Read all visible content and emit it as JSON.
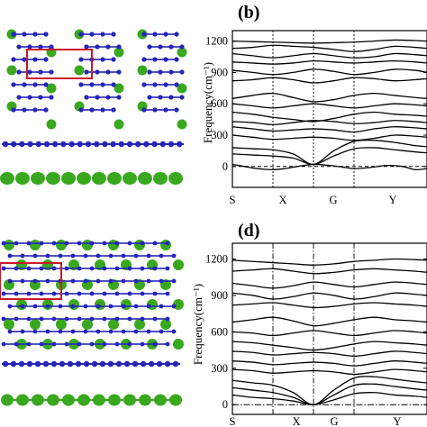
{
  "colors": {
    "boron": "#2525b8",
    "metal": "#39a81e",
    "cell": "#c81a2a",
    "frame": "#000000"
  },
  "panels": [
    {
      "letter": "(b)",
      "xlabels": [
        "S",
        "X",
        "G",
        "Y"
      ]
    },
    {
      "letter": "(d)",
      "xlabels": [
        "S",
        "X",
        "G",
        "Y"
      ]
    }
  ],
  "chart_data": [
    {
      "type": "line",
      "title": "(b)",
      "ylabel": "Frequency(cm⁻¹)",
      "xlabel": "",
      "x_ticks": [
        "S",
        "X",
        "G",
        "Y"
      ],
      "y_ticks": [
        0,
        300,
        600,
        900,
        1200
      ],
      "ylim": [
        -200,
        1300
      ],
      "xlim": [
        0,
        4.8
      ],
      "vertical_lines_at": [
        1,
        2,
        3
      ],
      "zero_line": "dashed",
      "series": [
        {
          "x": [
            0,
            0.5,
            1,
            1.5,
            2,
            2.5,
            3,
            3.5,
            4,
            4.5,
            4.8
          ],
          "values": [
            1200,
            1195,
            1190,
            1185,
            1180,
            1185,
            1190,
            1200,
            1210,
            1205,
            1200
          ]
        },
        {
          "x": [
            0,
            0.5,
            1,
            1.5,
            2,
            2.5,
            3,
            3.5,
            4,
            4.5,
            4.8
          ],
          "values": [
            1130,
            1140,
            1160,
            1150,
            1140,
            1120,
            1100,
            1120,
            1150,
            1140,
            1130
          ]
        },
        {
          "x": [
            0,
            0.5,
            1,
            1.5,
            2,
            2.5,
            3,
            3.5,
            4,
            4.5,
            4.8
          ],
          "values": [
            1080,
            1060,
            1040,
            1060,
            1080,
            1060,
            1040,
            1050,
            1080,
            1070,
            1060
          ]
        },
        {
          "x": [
            0,
            0.5,
            1,
            1.5,
            2,
            2.5,
            3,
            3.5,
            4,
            4.5,
            4.8
          ],
          "values": [
            1000,
            990,
            980,
            990,
            1010,
            1000,
            990,
            1000,
            1010,
            1000,
            990
          ]
        },
        {
          "x": [
            0,
            0.5,
            1,
            1.5,
            2,
            2.5,
            3,
            3.5,
            4,
            4.5,
            4.8
          ],
          "values": [
            920,
            900,
            880,
            900,
            930,
            910,
            880,
            900,
            930,
            920,
            900
          ]
        },
        {
          "x": [
            0,
            0.5,
            1,
            1.5,
            2,
            2.5,
            3,
            3.5,
            4,
            4.5,
            4.8
          ],
          "values": [
            820,
            830,
            850,
            830,
            800,
            820,
            850,
            840,
            820,
            830,
            840
          ]
        },
        {
          "x": [
            0,
            0.5,
            1,
            1.5,
            2,
            2.5,
            3,
            3.5,
            4,
            4.5,
            4.8
          ],
          "values": [
            650,
            680,
            700,
            660,
            620,
            640,
            680,
            700,
            680,
            660,
            650
          ]
        },
        {
          "x": [
            0,
            0.5,
            1,
            1.5,
            2,
            2.5,
            3,
            3.5,
            4,
            4.5,
            4.8
          ],
          "values": [
            600,
            580,
            560,
            580,
            600,
            580,
            560,
            580,
            600,
            590,
            580
          ]
        },
        {
          "x": [
            0,
            0.5,
            1,
            1.5,
            2,
            2.5,
            3,
            3.5,
            4,
            4.5,
            4.8
          ],
          "values": [
            520,
            500,
            470,
            450,
            430,
            460,
            500,
            520,
            500,
            490,
            480
          ]
        },
        {
          "x": [
            0,
            0.5,
            1,
            1.5,
            2,
            2.5,
            3,
            3.5,
            4,
            4.5,
            4.8
          ],
          "values": [
            430,
            420,
            400,
            420,
            440,
            430,
            410,
            420,
            440,
            430,
            420
          ]
        },
        {
          "x": [
            0,
            0.5,
            1,
            1.5,
            2,
            2.5,
            3,
            3.5,
            4,
            4.5,
            4.8
          ],
          "values": [
            380,
            360,
            340,
            350,
            360,
            350,
            330,
            360,
            380,
            370,
            360
          ]
        },
        {
          "x": [
            0,
            0.5,
            1,
            1.5,
            2,
            2.5,
            3,
            3.5,
            4,
            4.5,
            4.8
          ],
          "values": [
            300,
            280,
            260,
            270,
            280,
            270,
            250,
            270,
            300,
            290,
            280
          ]
        },
        {
          "x": [
            0,
            0.5,
            1,
            1.5,
            2,
            2.5,
            3,
            3.5,
            4,
            4.5,
            4.8
          ],
          "values": [
            180,
            170,
            160,
            120,
            20,
            150,
            240,
            250,
            230,
            200,
            190
          ]
        },
        {
          "x": [
            0,
            0.5,
            1,
            1.5,
            2,
            2.5,
            3,
            3.5,
            4,
            4.5,
            4.8
          ],
          "values": [
            120,
            110,
            100,
            80,
            20,
            100,
            170,
            180,
            160,
            140,
            130
          ]
        },
        {
          "x": [
            0,
            0.3,
            0.6,
            1,
            1.3,
            1.6,
            2,
            2.4,
            2.8,
            3,
            3.4,
            3.8,
            4.2,
            4.5,
            4.8
          ],
          "values": [
            20,
            0,
            -20,
            -30,
            -20,
            0,
            20,
            10,
            -10,
            -20,
            -10,
            10,
            0,
            -30,
            -20
          ]
        }
      ]
    },
    {
      "type": "line",
      "title": "(d)",
      "ylabel": "Frequency(cm⁻¹)",
      "xlabel": "",
      "x_ticks": [
        "S",
        "X",
        "G",
        "Y"
      ],
      "y_ticks": [
        0,
        300,
        600,
        900,
        1200
      ],
      "ylim": [
        -80,
        1330
      ],
      "xlim": [
        0,
        4.8
      ],
      "vertical_lines_at": [
        1,
        2,
        3
      ],
      "zero_line": "dashdot",
      "series": [
        {
          "x": [
            0,
            0.5,
            1,
            1.5,
            2,
            2.5,
            3,
            3.5,
            4,
            4.5,
            4.8
          ],
          "values": [
            1190,
            1180,
            1170,
            1160,
            1150,
            1160,
            1180,
            1190,
            1200,
            1195,
            1190
          ]
        },
        {
          "x": [
            0,
            0.5,
            1,
            1.5,
            2,
            2.5,
            3,
            3.5,
            4,
            4.5,
            4.8
          ],
          "values": [
            1100,
            1110,
            1120,
            1100,
            1080,
            1090,
            1110,
            1120,
            1110,
            1100,
            1090
          ]
        },
        {
          "x": [
            0,
            0.5,
            1,
            1.5,
            2,
            2.5,
            3,
            3.5,
            4,
            4.5,
            4.8
          ],
          "values": [
            1000,
            980,
            960,
            980,
            1010,
            990,
            970,
            990,
            1010,
            1000,
            990
          ]
        },
        {
          "x": [
            0,
            0.5,
            1,
            1.5,
            2,
            2.5,
            3,
            3.5,
            4,
            4.5,
            4.8
          ],
          "values": [
            920,
            900,
            870,
            890,
            920,
            900,
            870,
            890,
            920,
            910,
            900
          ]
        },
        {
          "x": [
            0,
            0.5,
            1,
            1.5,
            2,
            2.5,
            3,
            3.5,
            4,
            4.5,
            4.8
          ],
          "values": [
            820,
            830,
            840,
            820,
            800,
            810,
            830,
            840,
            830,
            820,
            810
          ]
        },
        {
          "x": [
            0,
            0.5,
            1,
            1.5,
            2,
            2.5,
            3,
            3.5,
            4,
            4.5,
            4.8
          ],
          "values": [
            680,
            700,
            720,
            690,
            650,
            670,
            700,
            720,
            700,
            690,
            680
          ]
        },
        {
          "x": [
            0,
            0.5,
            1,
            1.5,
            2,
            2.5,
            3,
            3.5,
            4,
            4.5,
            4.8
          ],
          "values": [
            600,
            590,
            570,
            590,
            610,
            590,
            570,
            590,
            610,
            600,
            590
          ]
        },
        {
          "x": [
            0,
            0.5,
            1,
            1.5,
            2,
            2.5,
            3,
            3.5,
            4,
            4.5,
            4.8
          ],
          "values": [
            520,
            510,
            490,
            470,
            450,
            470,
            500,
            520,
            510,
            500,
            490
          ]
        },
        {
          "x": [
            0,
            0.5,
            1,
            1.5,
            2,
            2.5,
            3,
            3.5,
            4,
            4.5,
            4.8
          ],
          "values": [
            440,
            430,
            410,
            420,
            430,
            420,
            400,
            420,
            440,
            430,
            420
          ]
        },
        {
          "x": [
            0,
            0.5,
            1,
            1.5,
            2,
            2.5,
            3,
            3.5,
            4,
            4.5,
            4.8
          ],
          "values": [
            360,
            350,
            330,
            340,
            350,
            340,
            320,
            340,
            360,
            350,
            340
          ]
        },
        {
          "x": [
            0,
            0.5,
            1,
            1.5,
            2,
            2.5,
            3,
            3.5,
            4,
            4.5,
            4.8
          ],
          "values": [
            290,
            280,
            260,
            270,
            280,
            270,
            250,
            270,
            290,
            280,
            270
          ]
        },
        {
          "x": [
            0,
            0.5,
            1,
            1.5,
            2,
            2.5,
            3,
            3.5,
            4,
            4.5,
            4.8
          ],
          "values": [
            200,
            180,
            160,
            100,
            0,
            120,
            220,
            230,
            210,
            190,
            180
          ]
        },
        {
          "x": [
            0,
            0.5,
            1,
            1.5,
            2,
            2.5,
            3,
            3.5,
            4,
            4.5,
            4.8
          ],
          "values": [
            140,
            120,
            100,
            60,
            0,
            80,
            160,
            170,
            150,
            130,
            120
          ]
        },
        {
          "x": [
            0,
            0.5,
            1,
            1.5,
            2,
            2.5,
            3,
            3.5,
            4,
            4.5,
            4.8
          ],
          "values": [
            80,
            60,
            50,
            30,
            0,
            40,
            90,
            100,
            80,
            70,
            60
          ]
        }
      ]
    }
  ]
}
